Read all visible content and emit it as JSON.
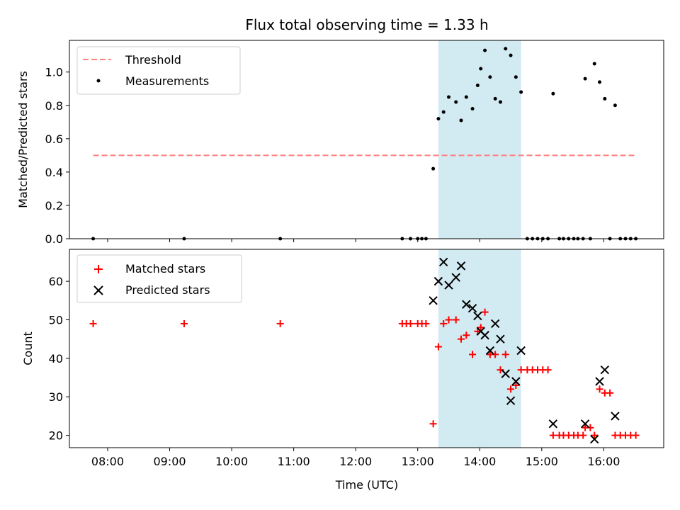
{
  "chart_data": [
    {
      "type": "scatter",
      "title": "Flux total observing time = 1.33 h",
      "xlabel": "",
      "ylabel": "Matched/Predicted stars",
      "xlim": [
        "07:23",
        "16:58"
      ],
      "ylim": [
        0,
        1.19
      ],
      "yticks": [
        "0.0",
        "0.2",
        "0.4",
        "0.6",
        "0.8",
        "1.0"
      ],
      "shaded_interval": [
        "13:20",
        "14:40"
      ],
      "shaded_color": "#add8e6",
      "legend_position": "upper-left",
      "series": [
        {
          "name": "Threshold",
          "kind": "dashed-line",
          "color": "#ff7f7f",
          "points": [
            [
              "07:46",
              0.5
            ],
            [
              "16:30",
              0.5
            ]
          ]
        },
        {
          "name": "Measurements",
          "kind": "dot",
          "color": "#000000",
          "points": [
            [
              "07:46",
              0.0
            ],
            [
              "09:14",
              0.0
            ],
            [
              "10:47",
              0.0
            ],
            [
              "12:45",
              0.0
            ],
            [
              "12:53",
              0.0
            ],
            [
              "13:00",
              0.0
            ],
            [
              "13:04",
              0.0
            ],
            [
              "13:08",
              0.0
            ],
            [
              "13:15",
              0.42
            ],
            [
              "13:20",
              0.72
            ],
            [
              "13:25",
              0.76
            ],
            [
              "13:30",
              0.85
            ],
            [
              "13:37",
              0.82
            ],
            [
              "13:42",
              0.71
            ],
            [
              "13:47",
              0.85
            ],
            [
              "13:53",
              0.78
            ],
            [
              "13:58",
              0.92
            ],
            [
              "14:01",
              1.02
            ],
            [
              "14:05",
              1.13
            ],
            [
              "14:10",
              0.97
            ],
            [
              "14:15",
              0.84
            ],
            [
              "14:20",
              0.82
            ],
            [
              "14:25",
              1.14
            ],
            [
              "14:30",
              1.1
            ],
            [
              "14:35",
              0.97
            ],
            [
              "14:40",
              0.88
            ],
            [
              "14:46",
              0.0
            ],
            [
              "14:51",
              0.0
            ],
            [
              "14:56",
              0.0
            ],
            [
              "15:01",
              0.0
            ],
            [
              "15:06",
              0.0
            ],
            [
              "15:11",
              0.87
            ],
            [
              "15:17",
              0.0
            ],
            [
              "15:21",
              0.0
            ],
            [
              "15:26",
              0.0
            ],
            [
              "15:31",
              0.0
            ],
            [
              "15:35",
              0.0
            ],
            [
              "15:40",
              0.0
            ],
            [
              "15:42",
              0.96
            ],
            [
              "15:47",
              0.0
            ],
            [
              "15:51",
              1.05
            ],
            [
              "15:56",
              0.94
            ],
            [
              "16:01",
              0.84
            ],
            [
              "16:06",
              0.0
            ],
            [
              "16:11",
              0.8
            ],
            [
              "16:16",
              0.0
            ],
            [
              "16:21",
              0.0
            ],
            [
              "16:26",
              0.0
            ],
            [
              "16:31",
              0.0
            ]
          ]
        }
      ]
    },
    {
      "type": "scatter",
      "title": "",
      "xlabel": "Time (UTC)",
      "ylabel": "Count",
      "xlim": [
        "07:23",
        "16:58"
      ],
      "ylim": [
        16.8,
        68.3
      ],
      "xticks": [
        "08:00",
        "09:00",
        "10:00",
        "11:00",
        "12:00",
        "13:00",
        "14:00",
        "15:00",
        "16:00"
      ],
      "yticks": [
        "20",
        "30",
        "40",
        "50",
        "60"
      ],
      "shaded_interval": [
        "13:20",
        "14:40"
      ],
      "shaded_color": "#add8e6",
      "legend_position": "upper-left",
      "series": [
        {
          "name": "Matched stars",
          "kind": "plus",
          "color": "#ff0000",
          "points": [
            [
              "07:46",
              49
            ],
            [
              "09:14",
              49
            ],
            [
              "10:47",
              49
            ],
            [
              "12:45",
              49
            ],
            [
              "12:49",
              49
            ],
            [
              "12:53",
              49
            ],
            [
              "13:00",
              49
            ],
            [
              "13:04",
              49
            ],
            [
              "13:08",
              49
            ],
            [
              "13:15",
              23
            ],
            [
              "13:20",
              43
            ],
            [
              "13:25",
              49
            ],
            [
              "13:30",
              50
            ],
            [
              "13:37",
              50
            ],
            [
              "13:42",
              45
            ],
            [
              "13:47",
              46
            ],
            [
              "13:53",
              41
            ],
            [
              "13:58",
              47
            ],
            [
              "14:01",
              48
            ],
            [
              "14:05",
              52
            ],
            [
              "14:10",
              41
            ],
            [
              "14:15",
              41
            ],
            [
              "14:20",
              37
            ],
            [
              "14:25",
              41
            ],
            [
              "14:30",
              32
            ],
            [
              "14:35",
              33
            ],
            [
              "14:40",
              37
            ],
            [
              "14:46",
              37
            ],
            [
              "14:51",
              37
            ],
            [
              "14:56",
              37
            ],
            [
              "15:01",
              37
            ],
            [
              "15:06",
              37
            ],
            [
              "15:11",
              20
            ],
            [
              "15:17",
              20
            ],
            [
              "15:21",
              20
            ],
            [
              "15:26",
              20
            ],
            [
              "15:31",
              20
            ],
            [
              "15:35",
              20
            ],
            [
              "15:40",
              20
            ],
            [
              "15:42",
              22
            ],
            [
              "15:47",
              22
            ],
            [
              "15:51",
              20
            ],
            [
              "15:56",
              32
            ],
            [
              "16:01",
              31
            ],
            [
              "16:06",
              31
            ],
            [
              "16:11",
              20
            ],
            [
              "16:16",
              20
            ],
            [
              "16:21",
              20
            ],
            [
              "16:26",
              20
            ],
            [
              "16:31",
              20
            ]
          ]
        },
        {
          "name": "Predicted stars",
          "kind": "x",
          "color": "#000000",
          "points": [
            [
              "13:15",
              55
            ],
            [
              "13:20",
              60
            ],
            [
              "13:25",
              65
            ],
            [
              "13:30",
              59
            ],
            [
              "13:37",
              61
            ],
            [
              "13:42",
              64
            ],
            [
              "13:47",
              54
            ],
            [
              "13:53",
              53
            ],
            [
              "13:58",
              51
            ],
            [
              "14:01",
              47
            ],
            [
              "14:05",
              46
            ],
            [
              "14:10",
              42
            ],
            [
              "14:15",
              49
            ],
            [
              "14:20",
              45
            ],
            [
              "14:25",
              36
            ],
            [
              "14:30",
              29
            ],
            [
              "14:35",
              34
            ],
            [
              "14:40",
              42
            ],
            [
              "15:11",
              23
            ],
            [
              "15:42",
              23
            ],
            [
              "15:51",
              19
            ],
            [
              "15:56",
              34
            ],
            [
              "16:01",
              37
            ],
            [
              "16:11",
              25
            ]
          ]
        }
      ]
    }
  ]
}
